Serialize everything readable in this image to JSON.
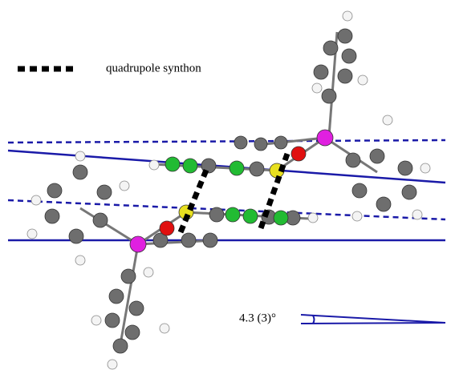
{
  "legend": {
    "label": "quadrupole synthon"
  },
  "angle": {
    "label": "4.3 (3)°"
  }
}
